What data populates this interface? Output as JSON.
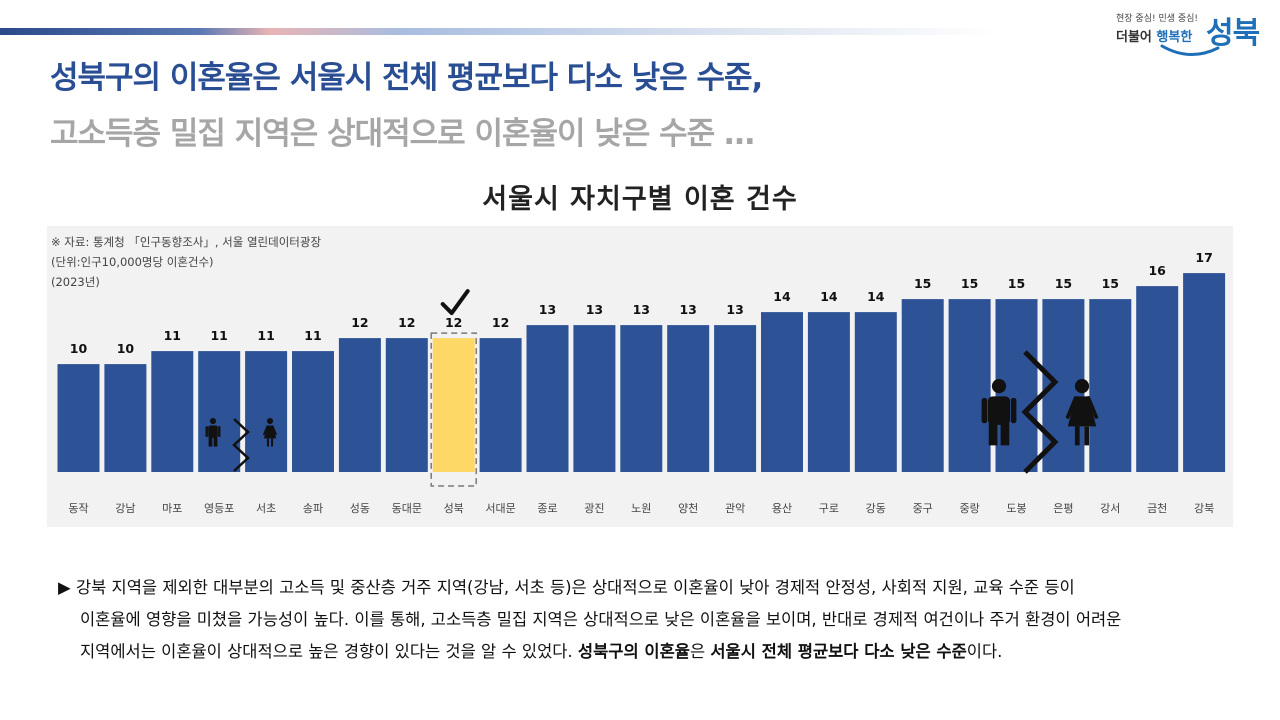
{
  "logo": {
    "slogan": "현장 중심! 민생 중심!",
    "small_prefix": "더불어",
    "small_accent": "행복한",
    "big": "성북"
  },
  "headline": {
    "line1": "성북구의 이혼율은 서울시 전체 평균보다 다소 낮은 수준,",
    "line2": "고소득층 밀집 지역은 상대적으로 이혼율이 낮은 수준 …"
  },
  "chart_title": "서울시 자치구별 이혼 건수",
  "notes": {
    "source": "※ 자료: 통계청 「인구동향조사」, 서울 열린데이터광장",
    "unit": "(단위:인구10,000명당  이혼건수)",
    "year": "(2023년)"
  },
  "chart_data": {
    "type": "bar",
    "title": "서울시 자치구별 이혼 건수",
    "xlabel": "",
    "ylabel": "",
    "categories": [
      "동작",
      "강남",
      "마포",
      "영등포",
      "서초",
      "송파",
      "성동",
      "동대문",
      "성북",
      "서대문",
      "종로",
      "광진",
      "노원",
      "양천",
      "관악",
      "용산",
      "구로",
      "강동",
      "중구",
      "중랑",
      "도봉",
      "은평",
      "강서",
      "금천",
      "강북"
    ],
    "values": [
      10,
      10,
      11,
      11,
      11,
      11,
      12,
      12,
      12,
      12,
      13,
      13,
      13,
      13,
      13,
      14,
      14,
      14,
      15,
      15,
      15,
      15,
      15,
      16,
      17
    ],
    "ylim": [
      0,
      17
    ],
    "highlight_category": "성북",
    "bar_color": "#2e5296",
    "highlight_color": "#fdd866",
    "grid": false,
    "legend": "none"
  },
  "description": {
    "bullet": "▶",
    "line1": "강북 지역을 제외한 대부분의 고소득 및 중산층 거주 지역(강남, 서초 등)은 상대적으로 이혼율이 낮아 경제적 안정성, 사회적 지원, 교육 수준 등이",
    "line2": "이혼율에 영향을 미쳤을 가능성이 높다. 이를 통해, 고소득층 밀집 지역은 상대적으로 낮은 이혼율을 보이며, 반대로 경제적 여건이나 주거 환경이 어려운",
    "line3_plain": "지역에서는 이혼율이 상대적으로 높은 경향이 있다는 것을 알 수 있었다. ",
    "line3_bold1": "성북구의 이혼율",
    "line3_mid": "은 ",
    "line3_bold2": "서울시 전체 평균보다 다소 낮은 수준",
    "line3_end": "이다."
  }
}
